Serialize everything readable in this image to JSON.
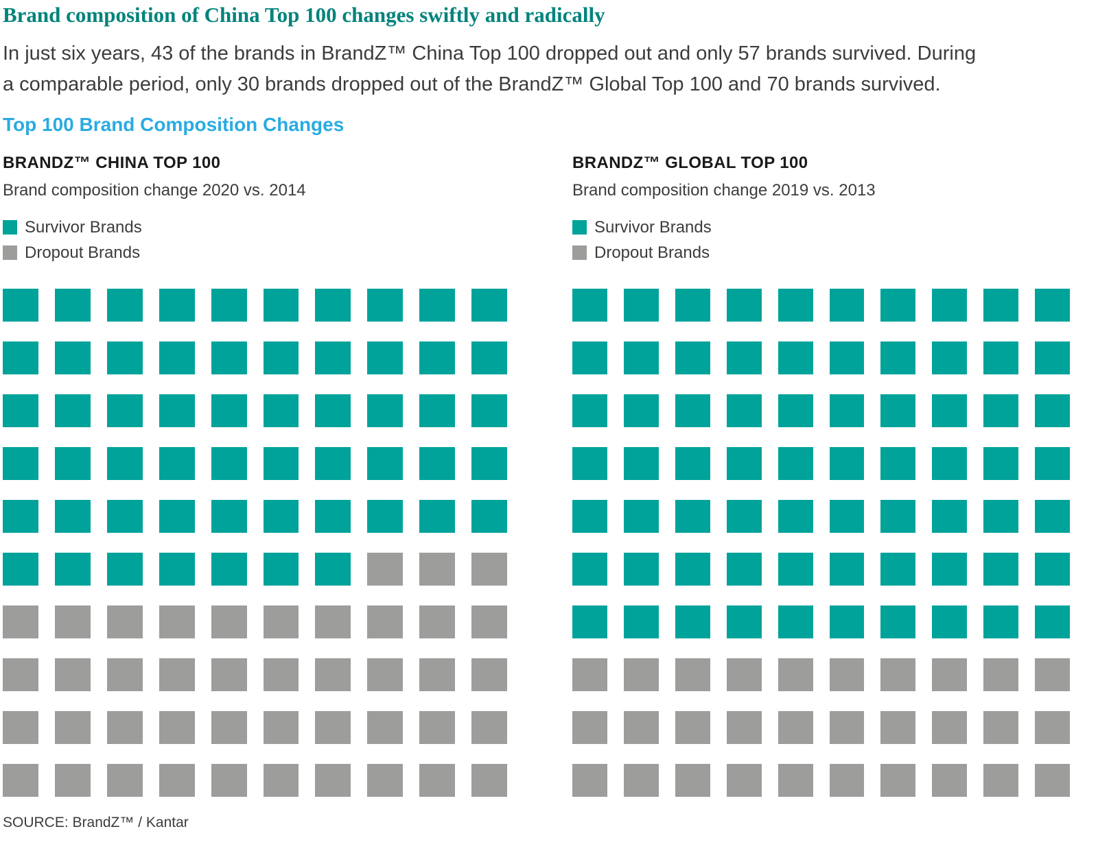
{
  "page": {
    "title": "Brand composition of China Top 100 changes swiftly and radically",
    "intro": "In just six years, 43 of the brands in BrandZ™ China Top 100 dropped out and only 57 brands survived. During a comparable period, only 30 brands dropped out of the BrandZ™ Global Top 100 and 70 brands survived.",
    "section_heading": "Top 100 Brand Composition Changes",
    "source": "SOURCE: BrandZ™ / Kantar"
  },
  "colors": {
    "survivor": "#00A39A",
    "dropout": "#9D9D9C",
    "title_teal": "#00837B",
    "heading_blue": "#29ABE2",
    "body_text": "#3C3C3B"
  },
  "chart_data": [
    {
      "type": "waffle",
      "title": "BRANDZ™ CHINA TOP 100",
      "subtitle": "Brand composition change 2020 vs. 2014",
      "grid": {
        "rows": 10,
        "cols": 10,
        "fill_order": "left-to-right, top-to-bottom"
      },
      "total_units": 100,
      "series": [
        {
          "name": "Survivor Brands",
          "value": 57,
          "color": "#00A39A"
        },
        {
          "name": "Dropout Brands",
          "value": 43,
          "color": "#9D9D9C"
        }
      ],
      "legend_position": "top-left"
    },
    {
      "type": "waffle",
      "title": "BRANDZ™ GLOBAL TOP 100",
      "subtitle": "Brand composition change 2019 vs. 2013",
      "grid": {
        "rows": 10,
        "cols": 10,
        "fill_order": "left-to-right, top-to-bottom"
      },
      "total_units": 100,
      "series": [
        {
          "name": "Survivor Brands",
          "value": 70,
          "color": "#00A39A"
        },
        {
          "name": "Dropout Brands",
          "value": 30,
          "color": "#9D9D9C"
        }
      ],
      "legend_position": "top-left"
    }
  ]
}
